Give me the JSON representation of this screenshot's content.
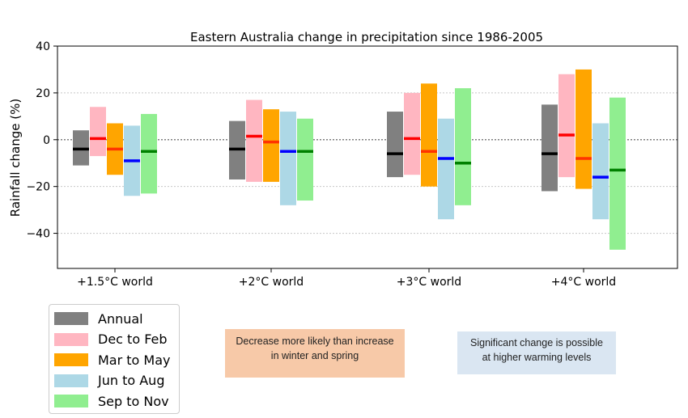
{
  "chart_data": {
    "type": "bar",
    "title": "Eastern Australia change in precipitation since 1986-2005",
    "ylabel": "Rainfall change (%)",
    "xlabel": "",
    "ylim": [
      -55,
      40
    ],
    "yticks": [
      40,
      20,
      0,
      -20,
      -40
    ],
    "categories": [
      "+1.5°C world",
      "+2°C world",
      "+3°C world",
      "+4°C world"
    ],
    "grid": "horizontal dotted",
    "zero_line": "dotted",
    "series": [
      {
        "name": "Annual",
        "color": "#808080",
        "median_color": "#000000",
        "low": [
          -11,
          -17,
          -16,
          -22
        ],
        "high": [
          4,
          8,
          12,
          15
        ],
        "median": [
          -4,
          -4,
          -6,
          -6
        ]
      },
      {
        "name": "Dec to Feb",
        "color": "#ffb6c1",
        "median_color": "#ff0000",
        "low": [
          -7,
          -18,
          -15,
          -16
        ],
        "high": [
          14,
          17,
          20,
          28
        ],
        "median": [
          0.5,
          1.5,
          0.5,
          2
        ]
      },
      {
        "name": "Mar to May",
        "color": "#ffa500",
        "median_color": "#ff3300",
        "low": [
          -15,
          -18,
          -20,
          -21
        ],
        "high": [
          7,
          13,
          24,
          30
        ],
        "median": [
          -4,
          -1,
          -5,
          -8
        ]
      },
      {
        "name": "Jun to Aug",
        "color": "#add8e6",
        "median_color": "#0000ff",
        "low": [
          -24,
          -28,
          -34,
          -34
        ],
        "high": [
          6,
          12,
          9,
          7
        ],
        "median": [
          -9,
          -5,
          -8,
          -16
        ]
      },
      {
        "name": "Sep to Nov",
        "color": "#90ee90",
        "median_color": "#008000",
        "low": [
          -23,
          -26,
          -28,
          -47
        ],
        "high": [
          11,
          9,
          22,
          18
        ],
        "median": [
          -5,
          -5,
          -10,
          -13
        ]
      }
    ],
    "legend_position": "bottom-left, below plot"
  },
  "annotations": {
    "note1": [
      "Decrease more likely than increase",
      "in winter and spring"
    ],
    "note2": [
      "Significant change is possible",
      "at higher warming levels"
    ]
  }
}
